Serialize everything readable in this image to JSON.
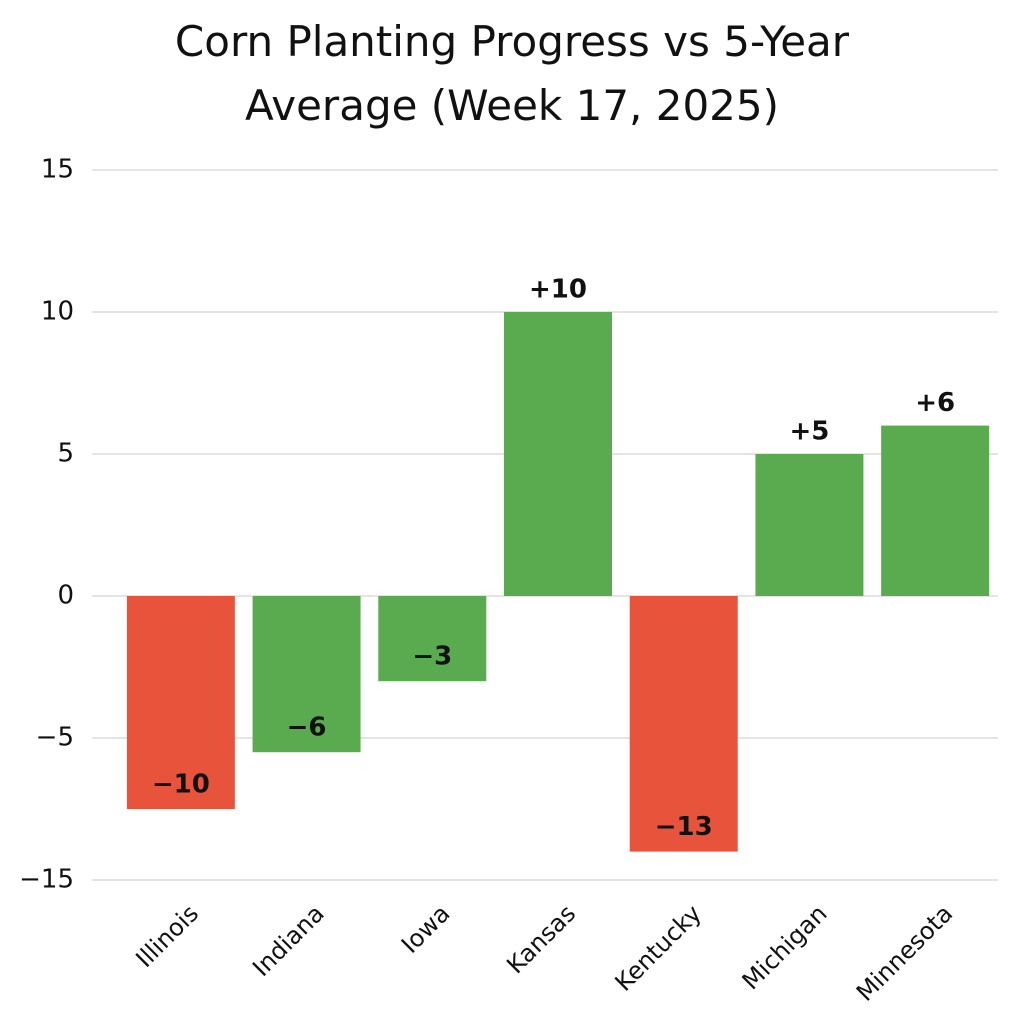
{
  "chart_data": {
    "type": "bar",
    "title": "Corn Planting Progress vs 5-Year Average (Week 17, 2025)",
    "categories": [
      "Illinois",
      "Indiana",
      "Iowa",
      "Kansas",
      "Kentucky",
      "Michigan",
      "Minnesota"
    ],
    "values": [
      -10,
      -6,
      -3,
      10,
      -13,
      5,
      6
    ],
    "value_labels": [
      "−10",
      "−6",
      "−3",
      "+10",
      "−13",
      "+5",
      "+6"
    ],
    "colors": [
      "#e8533b",
      "#5aaa50",
      "#5aaa50",
      "#5aaa50",
      "#e8533b",
      "#5aaa50",
      "#5aaa50"
    ],
    "ylim": [
      -15,
      15
    ],
    "yticks": [
      15,
      10,
      5,
      0,
      {
        "value": -5,
        "label": "−5"
      },
      {
        "value": -15,
        "label": "−15"
      }
    ],
    "grid": true
  }
}
